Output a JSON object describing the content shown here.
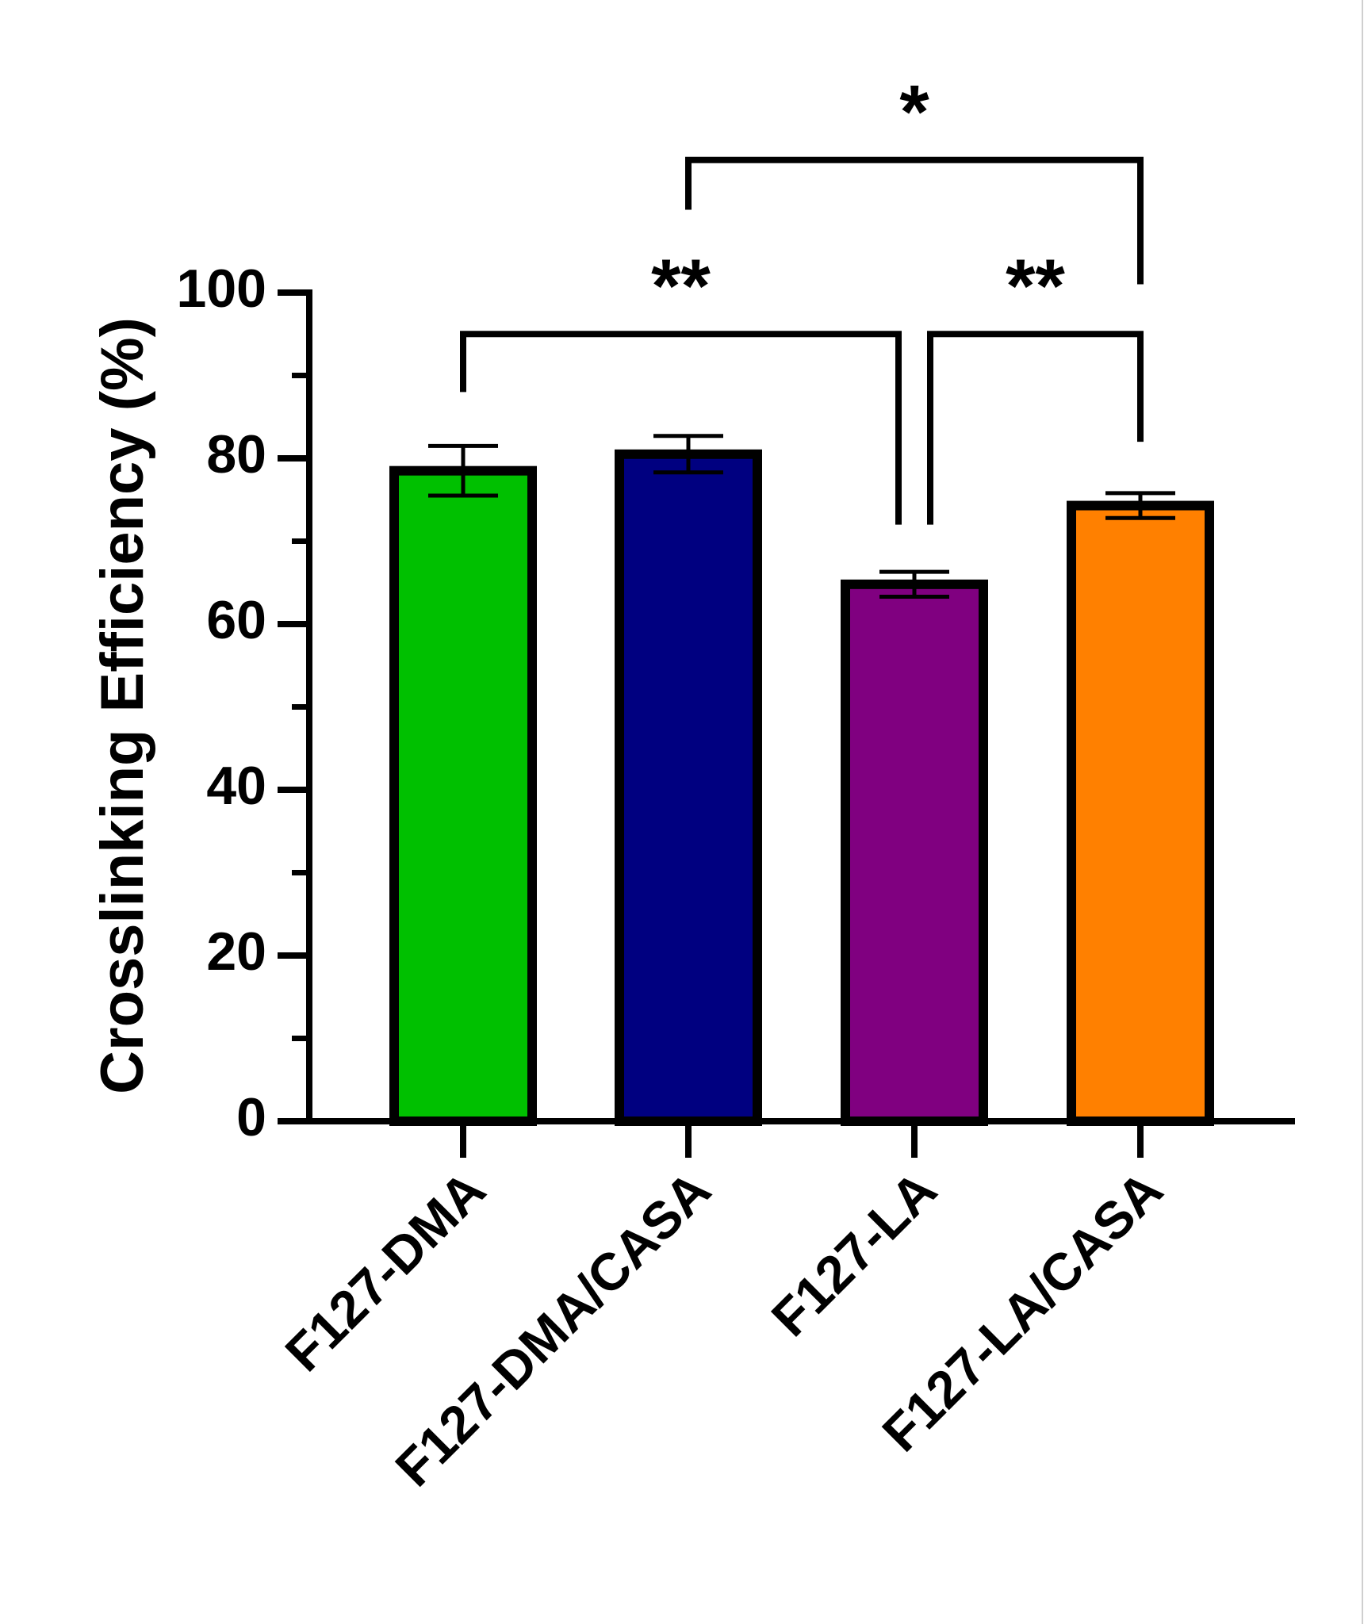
{
  "chart_data": {
    "type": "bar",
    "title": "",
    "xlabel": "",
    "ylabel": "Crosslinking Efficiency (%)",
    "ylim": [
      0,
      100
    ],
    "yticks": [
      0,
      20,
      40,
      60,
      80,
      100
    ],
    "grid": false,
    "legend": "none",
    "categories": [
      "F127-DMA",
      "F127-DMA/CASA",
      "F127-LA",
      "F127-LA/CASA"
    ],
    "values": [
      78.5,
      80.5,
      64.8,
      74.3
    ],
    "errors": [
      3.0,
      2.2,
      1.5,
      1.5
    ],
    "colors": [
      "#00c000",
      "#000080",
      "#800080",
      "#ff8000"
    ],
    "significance": [
      {
        "from": 0,
        "to": 2,
        "label": "**",
        "level": 95
      },
      {
        "from": 2,
        "to": 3,
        "label": "**",
        "level": 95
      },
      {
        "from": 1,
        "to": 3,
        "label": "*",
        "level": 116
      }
    ]
  }
}
